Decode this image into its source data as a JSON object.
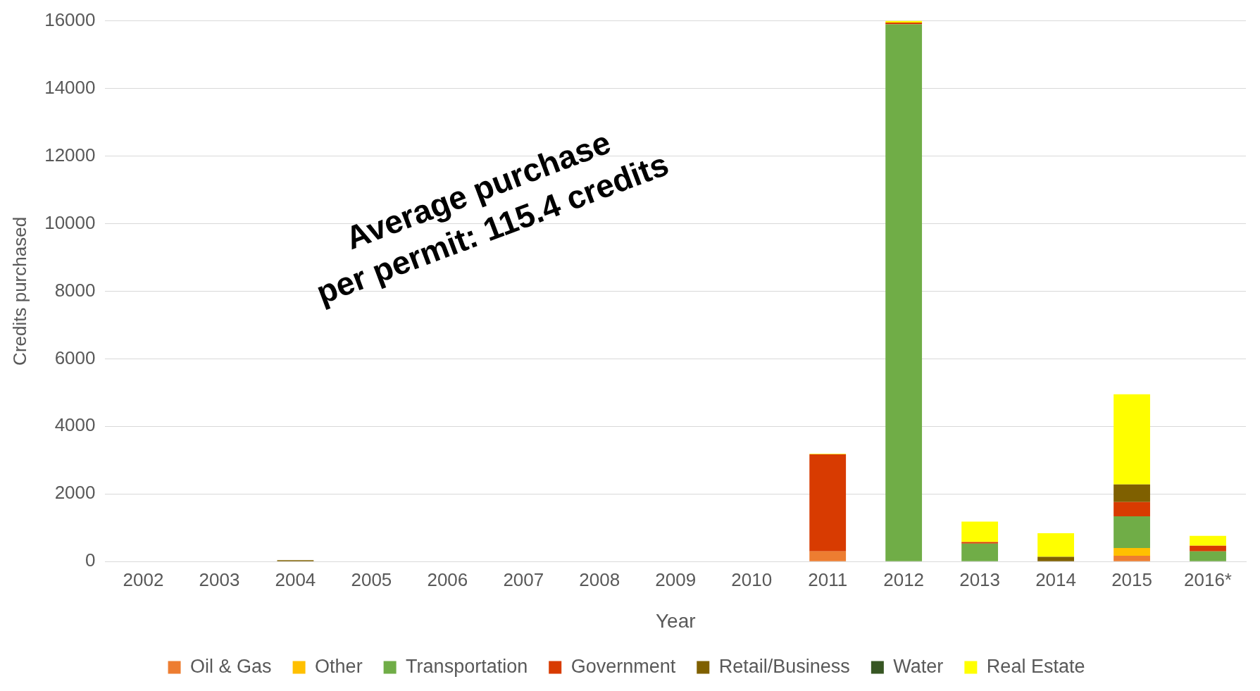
{
  "chart_data": {
    "type": "bar",
    "stacked": true,
    "xlabel": "Year",
    "ylabel": "Credits purchased",
    "categories": [
      "2002",
      "2003",
      "2004",
      "2005",
      "2006",
      "2007",
      "2008",
      "2009",
      "2010",
      "2011",
      "2012",
      "2013",
      "2014",
      "2015",
      "2016*"
    ],
    "series": [
      {
        "name": "Oil & Gas",
        "color": "#ed7d31",
        "values": [
          0,
          0,
          0,
          0,
          0,
          0,
          0,
          0,
          0,
          300,
          0,
          0,
          0,
          170,
          0
        ]
      },
      {
        "name": "Other",
        "color": "#ffc000",
        "values": [
          0,
          0,
          0,
          0,
          0,
          0,
          0,
          0,
          0,
          0,
          0,
          0,
          0,
          230,
          0
        ]
      },
      {
        "name": "Transportation",
        "color": "#70ad47",
        "values": [
          0,
          0,
          0,
          0,
          0,
          0,
          0,
          0,
          0,
          0,
          15900,
          530,
          0,
          940,
          300
        ]
      },
      {
        "name": "Government",
        "color": "#d83b01",
        "values": [
          0,
          0,
          0,
          0,
          0,
          0,
          0,
          0,
          0,
          2870,
          50,
          50,
          0,
          420,
          170
        ]
      },
      {
        "name": "Retail/Business",
        "color": "#7f6000",
        "values": [
          0,
          0,
          40,
          0,
          0,
          0,
          0,
          0,
          0,
          0,
          0,
          0,
          140,
          520,
          0
        ]
      },
      {
        "name": "Water",
        "color": "#375623",
        "values": [
          0,
          0,
          0,
          0,
          0,
          0,
          0,
          0,
          0,
          0,
          0,
          0,
          0,
          0,
          0
        ]
      },
      {
        "name": "Real Estate",
        "color": "#ffff00",
        "values": [
          0,
          0,
          0,
          0,
          0,
          0,
          0,
          0,
          0,
          20,
          50,
          600,
          700,
          2670,
          290
        ]
      }
    ],
    "ylim": [
      0,
      16000
    ],
    "yticks": [
      0,
      2000,
      4000,
      6000,
      8000,
      10000,
      12000,
      14000,
      16000
    ],
    "grid": "y",
    "legend": "bottom",
    "annotations": [
      "Average purchase\nper permit: 115.4 credits"
    ]
  }
}
